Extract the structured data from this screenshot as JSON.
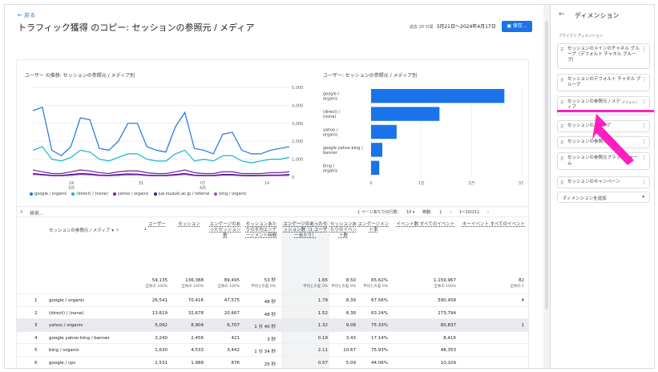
{
  "header": {
    "back": "← 戻る",
    "title": "トラフィック獲得 のコピー: セッションの参照元 / メディア",
    "date_sub": "過去 28 日間",
    "date": "3月21日～2024年4月17日",
    "save": "保存..."
  },
  "line_chart": {
    "title": "ユーザー の推移: セッションの参照元 / メディア別",
    "y_ticks": [
      "5,000",
      "4,000",
      "3,000",
      "2,000",
      "1,000",
      "0"
    ],
    "x_ticks": [
      {
        "d": "24",
        "m": "3月"
      },
      {
        "d": "31",
        "m": ""
      },
      {
        "d": "07",
        "m": "4月"
      },
      {
        "d": "14",
        "m": ""
      }
    ]
  },
  "chart_data": [
    {
      "type": "line",
      "title": "ユーザー の推移: セッションの参照元 / メディア別",
      "ylim": [
        0,
        5000
      ],
      "x": [
        1,
        2,
        3,
        4,
        5,
        6,
        7,
        8,
        9,
        10,
        11,
        12,
        13,
        14,
        15,
        16,
        17,
        18,
        19,
        20,
        21,
        22,
        23,
        24,
        25,
        26,
        27,
        28
      ],
      "series": [
        {
          "name": "google / organic",
          "color": "#1a73e8",
          "values": [
            3700,
            3900,
            1500,
            1200,
            1700,
            3300,
            3200,
            1600,
            1500,
            2000,
            3000,
            3000,
            1700,
            1500,
            1400,
            2800,
            3600,
            1600,
            1500,
            1300,
            2400,
            2500,
            1500,
            1300,
            1300,
            1500,
            1600,
            1700
          ]
        },
        {
          "name": "(direct) / (none)",
          "color": "#12b5cb",
          "values": [
            1500,
            1700,
            1000,
            900,
            1100,
            1500,
            1400,
            1000,
            900,
            1100,
            1300,
            1300,
            1000,
            900,
            900,
            1300,
            1500,
            900,
            1000,
            900,
            1200,
            1200,
            900,
            800,
            900,
            1000,
            1000,
            1100
          ]
        },
        {
          "name": "yahoo / organic",
          "color": "#7b1fa2",
          "values": [
            400,
            300,
            200,
            200,
            300,
            400,
            350,
            250,
            200,
            300,
            350,
            350,
            250,
            200,
            200,
            300,
            400,
            250,
            200,
            200,
            300,
            300,
            200,
            200,
            200,
            250,
            250,
            300
          ]
        },
        {
          "name": "jue.tsuzuki.ac.jp / referral",
          "color": "#4a148c",
          "values": [
            200,
            150,
            100,
            100,
            150,
            200,
            180,
            120,
            100,
            150,
            180,
            170,
            120,
            100,
            100,
            150,
            200,
            120,
            100,
            100,
            150,
            150,
            100,
            100,
            100,
            120,
            120,
            150
          ]
        },
        {
          "name": "bing / organic",
          "color": "#ab47bc",
          "values": [
            150,
            120,
            80,
            80,
            100,
            150,
            130,
            90,
            80,
            100,
            130,
            130,
            90,
            80,
            80,
            110,
            150,
            90,
            80,
            80,
            110,
            110,
            80,
            70,
            80,
            90,
            90,
            100
          ]
        }
      ]
    },
    {
      "type": "bar",
      "title": "ユーザー: セッションの参照元 / メディア別",
      "categories": [
        "google / organic",
        "(direct) / (none)",
        "yahoo / organic",
        "google yahoo bing / banner",
        "bing / organic"
      ],
      "values": [
        26541,
        13619,
        5092,
        2240,
        1630
      ],
      "xlim": [
        0,
        30000
      ],
      "x_ticks": [
        "0",
        "1万",
        "2万",
        "3万"
      ]
    }
  ],
  "table": {
    "search": "検索...",
    "pager": {
      "rows_label": "1 ページあたりの行数:",
      "rows": "10 ▾",
      "move": "移動:",
      "page": "1",
      "range": "1～10/211"
    },
    "dim_header": "セッションの参照元 / メディア",
    "headers": [
      "ユーザー",
      "セッション",
      "エンゲージのあったセッション数",
      "セッションあたりの平均エンゲージメント時間",
      "エンゲージのあったセッション数（1 ユーザーあたり）",
      "セッションあたりのイベント数",
      "エンゲージメント率",
      "イベント数 すべてのイベント",
      "キーイベント すべてのイベント"
    ],
    "totals": [
      {
        "v": "54,135",
        "s": "全体の 100%"
      },
      {
        "v": "136,388",
        "s": "全体の 100%"
      },
      {
        "v": "89,495",
        "s": "全体の 100%"
      },
      {
        "v": "53 秒",
        "s": "平均との差 0%"
      },
      {
        "v": "1.65",
        "s": "平均との差 0%"
      },
      {
        "v": "8.50",
        "s": "平均との差 0%"
      },
      {
        "v": "65.62%",
        "s": "平均との差 0%"
      },
      {
        "v": "1,159,967",
        "s": "全体の 100%"
      },
      {
        "v": "82",
        "s": "全体の 1"
      }
    ],
    "rows": [
      {
        "n": "1",
        "name": "google / organic",
        "c": [
          "26,541",
          "70,416",
          "47,575",
          "48 秒",
          "1.79",
          "8.39",
          "67.56%",
          "590,458",
          "4"
        ]
      },
      {
        "n": "2",
        "name": "(direct) / (none)",
        "c": [
          "13,619",
          "32,678",
          "20,667",
          "48 秒",
          "1.52",
          "8.38",
          "63.24%",
          "273,794",
          ""
        ]
      },
      {
        "n": "3",
        "name": "yahoo / organic",
        "c": [
          "5,092",
          "8,904",
          "6,707",
          "1 分 40 秒",
          "1.32",
          "9.08",
          "75.33%",
          "80,837",
          "1"
        ]
      },
      {
        "n": "4",
        "name": "google yahoo bing / banner",
        "c": [
          "2,240",
          "2,456",
          "421",
          "3 秒",
          "0.19",
          "3.43",
          "17.14%",
          "8,416",
          ""
        ]
      },
      {
        "n": "5",
        "name": "bing / organic",
        "c": [
          "1,630",
          "4,533",
          "3,442",
          "1 分 34 秒",
          "2.11",
          "10.67",
          "75.93%",
          "48,353",
          ""
        ]
      },
      {
        "n": "6",
        "name": "google / cpc",
        "c": [
          "1,531",
          "1,988",
          "876",
          "25 秒",
          "0.57",
          "5.09",
          "44.06%",
          "10,109",
          ""
        ]
      }
    ]
  },
  "sidebar": {
    "title": "ディメンション",
    "sub": "プライマリ ディメンション",
    "items": [
      "セッションのメインのチャネル グループ（デフォルト チャネル グループ）",
      "セッションのデフォルト チャネル グループ",
      "セッションの参照元 / メディア",
      "セッションのメディア",
      "セッションの参照元",
      "セッションの参照元プラットフォーム",
      "セッションのキャンペーン"
    ],
    "default_tag": "デフォルト",
    "add": "ディメンションを追加"
  }
}
